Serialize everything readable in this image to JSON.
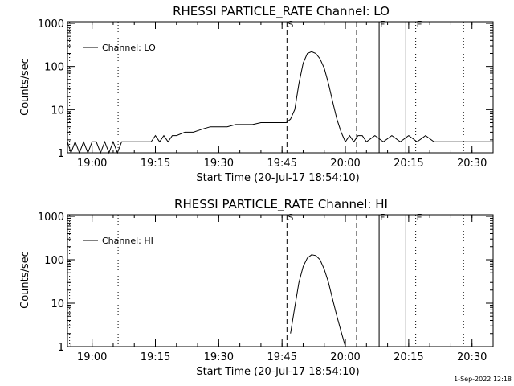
{
  "footer": {
    "timestamp": "1-Sep-2022 12:18"
  },
  "chart_data": [
    {
      "type": "line",
      "title": "RHESSI PARTICLE_RATE Channel: LO",
      "xlabel": "Start Time (20-Jul-17 18:54:10)",
      "ylabel": "Counts/sec",
      "yscale": "log",
      "ylim": [
        1,
        1000
      ],
      "xlim": [
        "18:54:10",
        "20:35:00"
      ],
      "x_ticks": [
        "19:00",
        "19:15",
        "19:30",
        "19:45",
        "20:00",
        "20:15",
        "20:30"
      ],
      "y_ticks": [
        "1",
        "10",
        "100",
        "1000"
      ],
      "legend": {
        "position": "top-left",
        "entries": [
          "Channel: LO"
        ]
      },
      "markers": [
        {
          "label": "S",
          "time": "19:46:10",
          "style": "dashed"
        },
        {
          "time": "20:02:40",
          "style": "dashed"
        },
        {
          "label": "F",
          "time": "20:08:00",
          "style": "solid"
        },
        {
          "time": "20:14:20",
          "style": "solid"
        },
        {
          "label": "E",
          "time": "20:16:40",
          "style": "dotted"
        },
        {
          "time": "19:06:10",
          "style": "dotted"
        },
        {
          "time": "20:28:00",
          "style": "dotted"
        },
        {
          "time": "18:54:40",
          "style": "dotted"
        }
      ],
      "series": [
        {
          "name": "Channel: LO",
          "x": [
            "18:54:10",
            "18:55:00",
            "18:56:00",
            "18:57:00",
            "18:58:00",
            "18:59:00",
            "19:00:00",
            "19:01:00",
            "19:02:00",
            "19:03:00",
            "19:04:00",
            "19:05:00",
            "19:06:00",
            "19:07:00",
            "19:10:00",
            "19:12:00",
            "19:14:00",
            "19:15:00",
            "19:16:00",
            "19:17:00",
            "19:18:00",
            "19:19:00",
            "19:20:00",
            "19:22:00",
            "19:24:00",
            "19:26:00",
            "19:28:00",
            "19:30:00",
            "19:32:00",
            "19:34:00",
            "19:36:00",
            "19:38:00",
            "19:40:00",
            "19:42:00",
            "19:44:00",
            "19:46:00",
            "19:47:00",
            "19:48:00",
            "19:49:00",
            "19:50:00",
            "19:51:00",
            "19:52:00",
            "19:53:00",
            "19:54:00",
            "19:55:00",
            "19:56:00",
            "19:57:00",
            "19:58:00",
            "19:59:00",
            "20:00:00",
            "20:01:00",
            "20:02:00",
            "20:03:00",
            "20:04:00",
            "20:05:00",
            "20:07:00",
            "20:09:00",
            "20:11:00",
            "20:13:00",
            "20:15:00",
            "20:17:00",
            "20:19:00",
            "20:21:00",
            "20:23:00",
            "20:25:00",
            "20:27:00",
            "20:29:00",
            "20:31:00",
            "20:33:00",
            "20:35:00"
          ],
          "y": [
            1.8,
            1,
            1.8,
            1,
            1.8,
            1,
            1.8,
            1.8,
            1,
            1.8,
            1,
            1.8,
            1,
            1.8,
            1.8,
            1.8,
            1.8,
            2.5,
            1.8,
            2.5,
            1.8,
            2.5,
            2.5,
            3,
            3,
            3.5,
            4,
            4,
            4,
            4.5,
            4.5,
            4.5,
            5,
            5,
            5,
            5,
            6,
            10,
            40,
            120,
            200,
            220,
            200,
            150,
            90,
            40,
            15,
            6,
            3,
            1.8,
            2.5,
            1.8,
            2.5,
            2.5,
            1.8,
            2.5,
            1.8,
            2.5,
            1.8,
            2.5,
            1.8,
            2.5,
            1.8,
            1.8,
            1.8,
            1.8,
            1.8,
            1.8,
            1.8,
            1.8
          ]
        }
      ]
    },
    {
      "type": "line",
      "title": "RHESSI PARTICLE_RATE Channel: HI",
      "xlabel": "Start Time (20-Jul-17 18:54:10)",
      "ylabel": "Counts/sec",
      "yscale": "log",
      "ylim": [
        1,
        1000
      ],
      "xlim": [
        "18:54:10",
        "20:35:00"
      ],
      "x_ticks": [
        "19:00",
        "19:15",
        "19:30",
        "19:45",
        "20:00",
        "20:15",
        "20:30"
      ],
      "y_ticks": [
        "1",
        "10",
        "100",
        "1000"
      ],
      "legend": {
        "position": "top-left",
        "entries": [
          "Channel: HI"
        ]
      },
      "markers": [
        {
          "label": "S",
          "time": "19:46:10",
          "style": "dashed"
        },
        {
          "time": "20:02:40",
          "style": "dashed"
        },
        {
          "label": "F",
          "time": "20:08:00",
          "style": "solid"
        },
        {
          "time": "20:14:20",
          "style": "solid"
        },
        {
          "label": "E",
          "time": "20:16:40",
          "style": "dotted"
        },
        {
          "time": "19:06:10",
          "style": "dotted"
        },
        {
          "time": "20:28:00",
          "style": "dotted"
        },
        {
          "time": "18:54:40",
          "style": "dotted"
        }
      ],
      "series": [
        {
          "name": "Channel: HI",
          "x": [
            "19:47:00",
            "19:48:00",
            "19:49:00",
            "19:50:00",
            "19:51:00",
            "19:52:00",
            "19:53:00",
            "19:54:00",
            "19:55:00",
            "19:56:00",
            "19:57:00",
            "19:58:00",
            "19:59:00",
            "20:00:00"
          ],
          "y": [
            2,
            8,
            30,
            70,
            110,
            130,
            125,
            100,
            60,
            30,
            12,
            5,
            2.2,
            1
          ]
        }
      ]
    }
  ]
}
